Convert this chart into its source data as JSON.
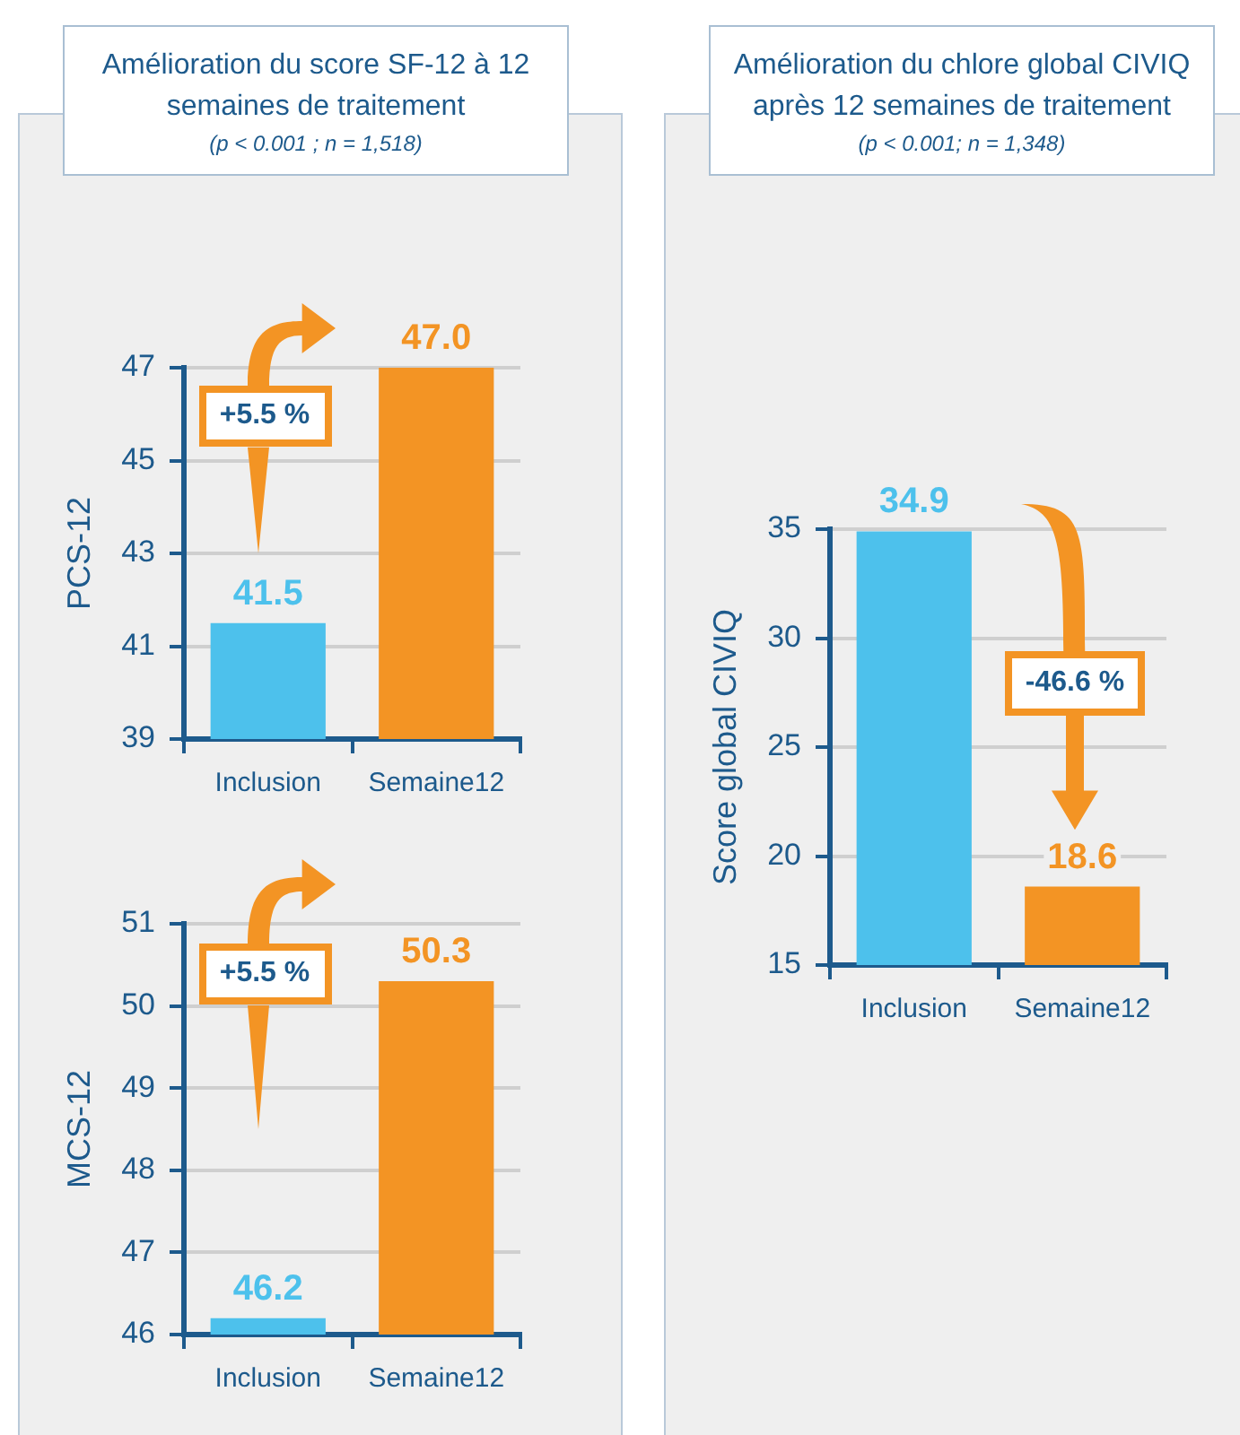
{
  "chart_data": [
    {
      "type": "bar",
      "title": "Amélioration du score SF-12 à 12 semaines de traitement",
      "subtitle": "(p < 0.001 ; n = 1,518)",
      "ylabel": "PCS-12",
      "categories": [
        "Inclusion",
        "Semaine12"
      ],
      "values": [
        41.5,
        47.0
      ],
      "value_labels": [
        "41.5",
        "47.0"
      ],
      "colors": [
        "#4dc1ec",
        "#f39424"
      ],
      "ylim": [
        39,
        47
      ],
      "yticks": [
        39,
        41,
        43,
        45,
        47
      ],
      "grid": "y",
      "annotations": [
        "+5.5 %"
      ]
    },
    {
      "type": "bar",
      "ylabel": "MCS-12",
      "categories": [
        "Inclusion",
        "Semaine12"
      ],
      "values": [
        46.2,
        50.3
      ],
      "value_labels": [
        "46.2",
        "50.3"
      ],
      "colors": [
        "#4dc1ec",
        "#f39424"
      ],
      "ylim": [
        46,
        51
      ],
      "yticks": [
        46,
        47,
        48,
        49,
        50,
        51
      ],
      "grid": "y",
      "annotations": [
        "+5.5 %"
      ]
    },
    {
      "type": "bar",
      "title": "Amélioration du chlore global CIVIQ après 12 semaines de traitement",
      "subtitle": "(p < 0.001; n = 1,348)",
      "ylabel": "Score global CIVIQ",
      "categories": [
        "Inclusion",
        "Semaine12"
      ],
      "values": [
        34.9,
        18.6
      ],
      "value_labels": [
        "34.9",
        "18.6"
      ],
      "colors": [
        "#4dc1ec",
        "#f39424"
      ],
      "ylim": [
        15,
        35
      ],
      "yticks": [
        15,
        20,
        25,
        30,
        35
      ],
      "grid": "y",
      "annotations": [
        "-46.6 %"
      ]
    }
  ]
}
